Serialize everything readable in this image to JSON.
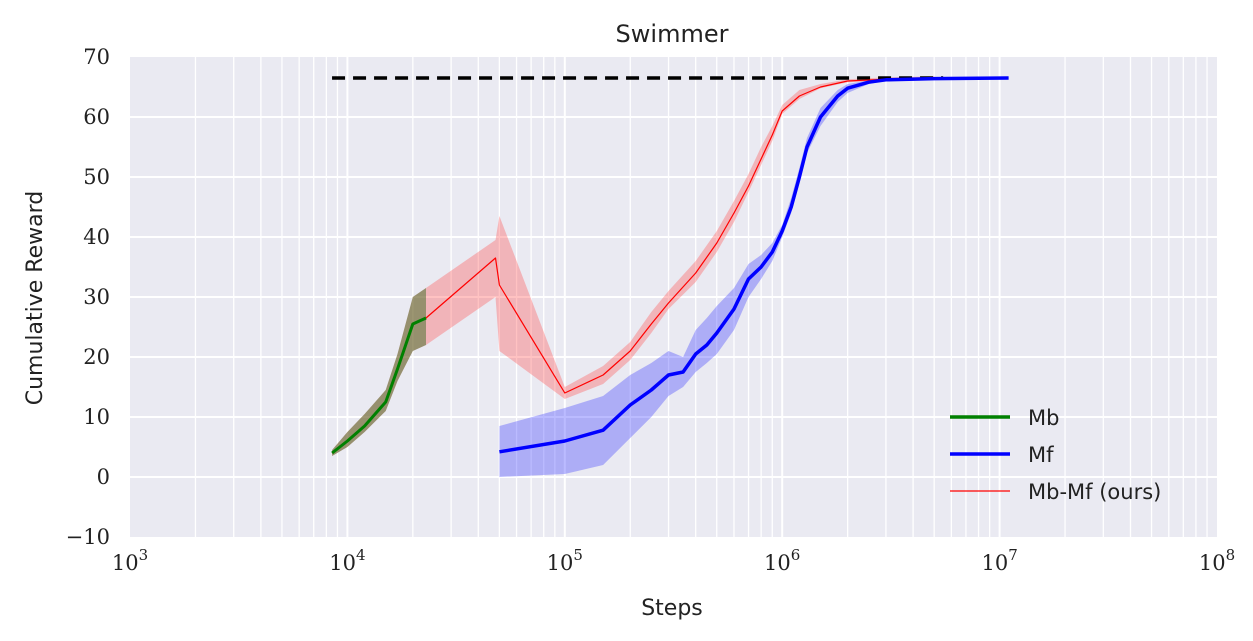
{
  "chart_data": {
    "type": "line",
    "title": "Swimmer",
    "xlabel": "Steps",
    "ylabel": "Cumulative Reward",
    "xscale": "log",
    "xlim": [
      1000,
      100000000
    ],
    "ylim": [
      -10,
      70
    ],
    "grid": true,
    "legend_position": "lower-right",
    "x_tick_labels": [
      {
        "base": "10",
        "exp": "3"
      },
      {
        "base": "10",
        "exp": "4"
      },
      {
        "base": "10",
        "exp": "5"
      },
      {
        "base": "10",
        "exp": "6"
      },
      {
        "base": "10",
        "exp": "7"
      },
      {
        "base": "10",
        "exp": "8"
      }
    ],
    "y_tick_labels": [
      "−10",
      "0",
      "10",
      "20",
      "30",
      "40",
      "50",
      "60",
      "70"
    ],
    "reference_line": {
      "y": 66.5,
      "x_from": 8500,
      "x_to": 5500000,
      "color": "#000000",
      "style": "dashed"
    },
    "series": [
      {
        "name": "Mb-Mf (ours)",
        "color": "#ff0000",
        "line_width": 1.2,
        "x": [
          8500,
          10000,
          12000,
          15000,
          17000,
          20000,
          23000,
          48000,
          50000,
          100000,
          150000,
          200000,
          250000,
          300000,
          400000,
          500000,
          600000,
          700000,
          800000,
          900000,
          1000000,
          1200000,
          1500000,
          2000000,
          3000000,
          5000000
        ],
        "y": [
          4,
          6,
          8.5,
          12.5,
          18,
          25.5,
          26.5,
          36.5,
          32,
          14,
          17,
          21,
          25.5,
          29,
          34,
          39,
          44,
          48.5,
          53,
          57,
          61,
          63.5,
          65,
          66,
          66.3,
          66.5
        ],
        "lower": [
          3.5,
          5,
          7.5,
          11,
          16,
          21,
          22,
          30,
          21,
          13,
          15.5,
          19.5,
          24,
          28,
          32.5,
          37.5,
          42.5,
          47.5,
          52,
          56,
          60.5,
          63,
          64.8,
          65.8,
          66.1,
          66.3
        ],
        "upper": [
          4.5,
          7.5,
          10.5,
          14.5,
          20.5,
          30,
          31.5,
          39.5,
          43.5,
          15,
          18.5,
          22.5,
          27.5,
          31,
          36,
          41,
          46,
          50.5,
          55,
          58.5,
          62,
          64.5,
          65.5,
          66.3,
          66.6,
          66.8
        ]
      },
      {
        "name": "Mb",
        "color": "#008000",
        "line_width": 3,
        "x": [
          8500,
          10000,
          12000,
          15000,
          17000,
          20000,
          23000
        ],
        "y": [
          4,
          6,
          8.5,
          12.5,
          18,
          25.5,
          26.5
        ],
        "lower": [
          3.5,
          5,
          7.5,
          11,
          16,
          21,
          22
        ],
        "upper": [
          4.5,
          7.5,
          10.5,
          14.5,
          20.5,
          30,
          31.5
        ]
      },
      {
        "name": "Mf",
        "color": "#0000ff",
        "line_width": 3.5,
        "x": [
          50000,
          100000,
          150000,
          200000,
          250000,
          300000,
          350000,
          400000,
          450000,
          500000,
          600000,
          700000,
          800000,
          900000,
          1000000,
          1100000,
          1200000,
          1300000,
          1500000,
          1800000,
          2000000,
          2500000,
          3000000,
          5000000,
          11000000
        ],
        "y": [
          4.2,
          6,
          7.8,
          12,
          14.5,
          17,
          17.5,
          20.5,
          22,
          24,
          28,
          33,
          35,
          37.5,
          41,
          45,
          50,
          55,
          60,
          63.5,
          64.8,
          65.8,
          66.2,
          66.4,
          66.5
        ],
        "lower": [
          0,
          0.5,
          2,
          6.5,
          10,
          13.5,
          15,
          17.5,
          19,
          20.5,
          24.5,
          30,
          33,
          36,
          40,
          44,
          49,
          54,
          58.5,
          62.5,
          64,
          65.5,
          66,
          66.2,
          66.3
        ],
        "upper": [
          8.5,
          11.5,
          13.5,
          17,
          19,
          21,
          20,
          24.5,
          26.5,
          28.5,
          31.5,
          35.5,
          37,
          39,
          42,
          46.5,
          51.5,
          56.5,
          61.5,
          64.5,
          65.5,
          66.1,
          66.4,
          66.6,
          66.7
        ]
      }
    ],
    "legend": [
      "Mb",
      "Mf",
      "Mb-Mf (ours)"
    ]
  }
}
